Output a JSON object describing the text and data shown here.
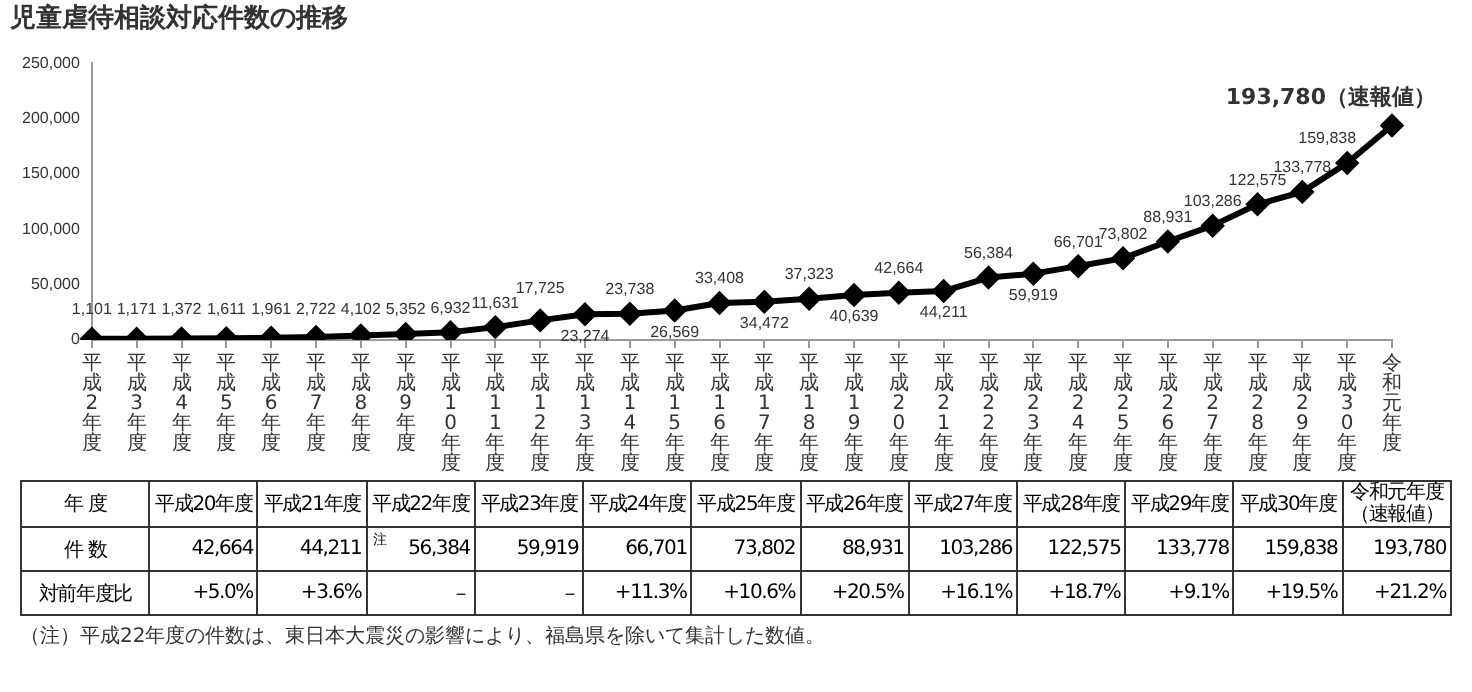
{
  "chart_data": {
    "type": "line",
    "title": "児童虐待相談対応件数の推移",
    "categories": [
      "平成2年度",
      "平成3年度",
      "平成4年度",
      "平成5年度",
      "平成6年度",
      "平成7年度",
      "平成8年度",
      "平成9年度",
      "平成10年度",
      "平成11年度",
      "平成12年度",
      "平成13年度",
      "平成14年度",
      "平成15年度",
      "平成16年度",
      "平成17年度",
      "平成18年度",
      "平成19年度",
      "平成20年度",
      "平成21年度",
      "平成22年度",
      "平成23年度",
      "平成24年度",
      "平成25年度",
      "平成26年度",
      "平成27年度",
      "平成28年度",
      "平成29年度",
      "平成30年度",
      "令和元年度"
    ],
    "series": [
      {
        "color": "#000000",
        "values": [
          1101,
          1171,
          1372,
          1611,
          1961,
          2722,
          4102,
          5352,
          6932,
          11631,
          17725,
          23274,
          23738,
          26569,
          33408,
          34472,
          37323,
          40639,
          42664,
          44211,
          56384,
          59919,
          66701,
          73802,
          88931,
          103286,
          122575,
          133778,
          159838,
          193780
        ],
        "value_labels": [
          "1,101",
          "1,171",
          "1,372",
          "1,611",
          "1,961",
          "2,722",
          "4,102",
          "5,352",
          "6,932",
          "11,631",
          "17,725",
          "23,274",
          "23,738",
          "26,569",
          "33,408",
          "34,472",
          "37,323",
          "40,639",
          "42,664",
          "44,211",
          "56,384",
          "59,919",
          "66,701",
          "73,802",
          "88,931",
          "103,286",
          "122,575",
          "133,778",
          "159,838",
          "193,780（速報値）"
        ]
      }
    ],
    "ylim": [
      0,
      250000
    ],
    "yticks": [
      0,
      {
        "value": 50000,
        "label": "50,000"
      },
      {
        "value": 100000,
        "label": "100,000"
      },
      {
        "value": 150000,
        "label": "150,000"
      },
      {
        "value": 200000,
        "label": "200,000"
      },
      {
        "value": 250000,
        "label": "250,000"
      }
    ],
    "grid": false,
    "legend": false,
    "marker": "diamond",
    "line_style": "solid",
    "annotations": [
      "年 度",
      "平成20年度",
      "平成21年度",
      "平成22年度",
      "平成23年度",
      "平成24年度",
      "平成25年度",
      "平成26年度",
      "平成27年度",
      "平成28年度",
      "平成29年度",
      "平成30年度",
      "令和元年度",
      "（速報値）",
      "件 数",
      "42,664",
      "44,211",
      "56,384",
      "59,919",
      "66,701",
      "73,802",
      "88,931",
      "103,286",
      "122,575",
      "133,778",
      "159,838",
      "193,780",
      "注",
      "対前年度比",
      "+5.0%",
      "+3.6%",
      "－",
      "－",
      "+11.3%",
      "+10.6%",
      "+20.5%",
      "+16.1%",
      "+18.7%",
      "+9.1%",
      "+19.5%",
      "+21.2%",
      "（注）平成22年度の件数は、東日本大震災の影響により、福島県を除いて集計した数値。"
    ]
  }
}
